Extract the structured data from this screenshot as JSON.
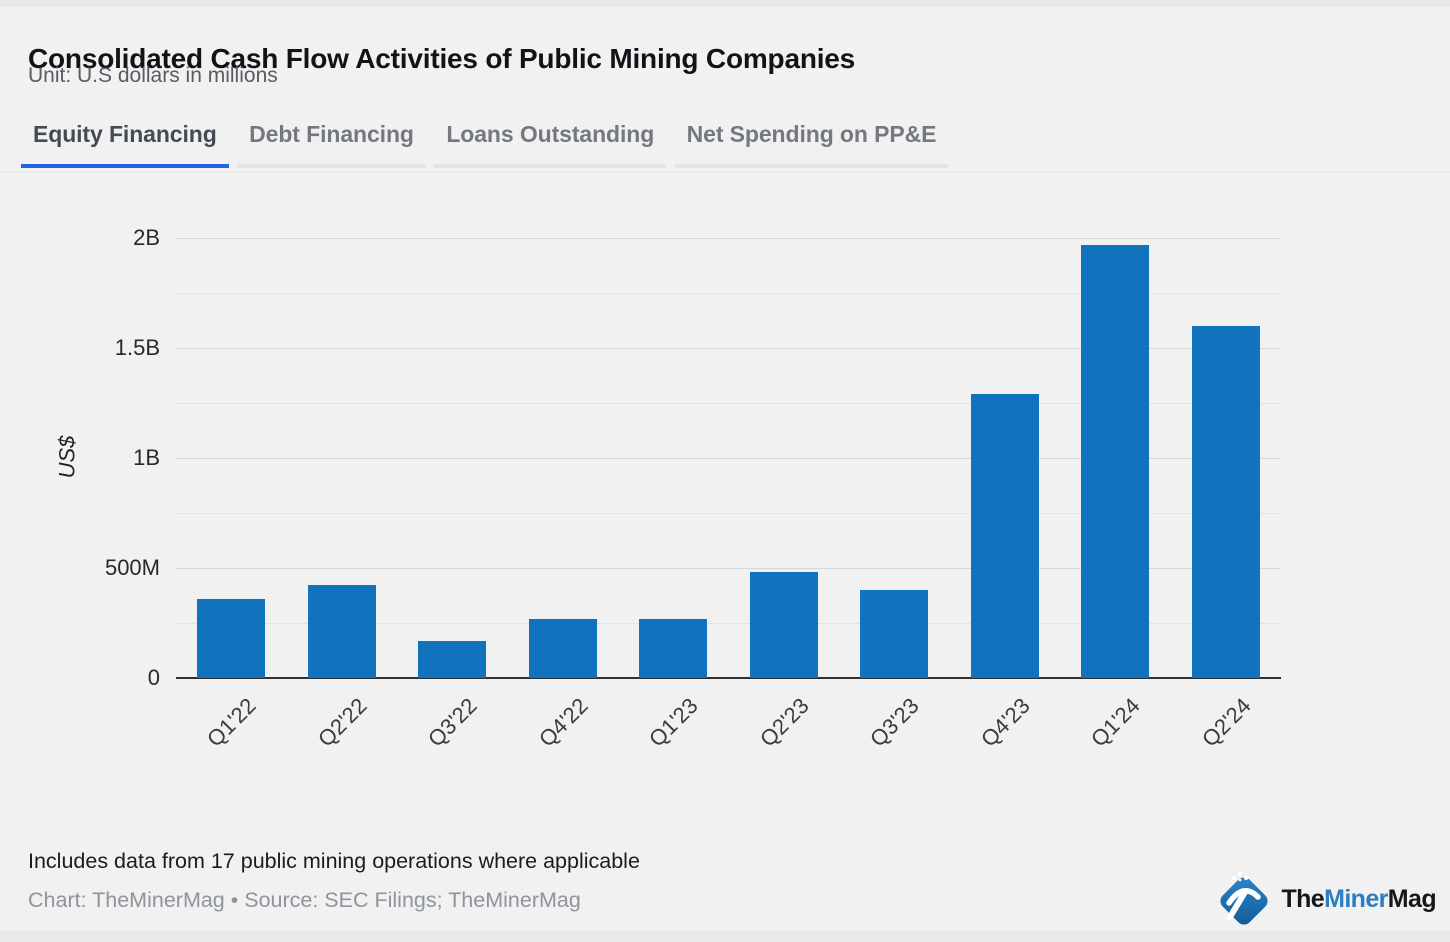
{
  "header": {
    "title": "Consolidated Cash Flow Activities of Public Mining Companies",
    "subtitle": "Unit: U.S dollars in millions"
  },
  "tabs": [
    {
      "label": "Equity Financing",
      "active": true
    },
    {
      "label": "Debt Financing",
      "active": false
    },
    {
      "label": "Loans Outstanding",
      "active": false
    },
    {
      "label": "Net Spending on PP&E",
      "active": false
    }
  ],
  "colors": {
    "accent_tab_underline": "#2563eb",
    "bar": "#1173bd",
    "logo_mark_top": "#2e86c9",
    "logo_mark_bottom": "#135a97",
    "logo_text_dark": "#15171b",
    "logo_text_blue": "#2d7dc4"
  },
  "chart_data": {
    "type": "bar",
    "title": "Consolidated Cash Flow Activities of Public Mining Companies — Equity Financing",
    "unit": "U.S dollars in millions",
    "categories": [
      "Q1'22",
      "Q2'22",
      "Q3'22",
      "Q4'22",
      "Q1'23",
      "Q2'23",
      "Q3'23",
      "Q4'23",
      "Q1'24",
      "Q2'24"
    ],
    "values": [
      358,
      424,
      167,
      270,
      266,
      484,
      400,
      1290,
      1966,
      1602
    ],
    "values_unit": "millions of US$",
    "xlabel": "",
    "ylabel": "US$",
    "ylim": [
      0,
      2000
    ],
    "ytick_values": [
      0,
      500,
      1000,
      1500,
      2000
    ],
    "ytick_labels": [
      "0",
      "500M",
      "1B",
      "1.5B",
      "2B"
    ],
    "minor_step": 250,
    "major_step": 500,
    "grid": true,
    "legend": "none",
    "bar_color": "#1173bd"
  },
  "footer": {
    "note": "Includes data from 17 public mining operations where applicable",
    "credit": "Chart: TheMinerMag • Source: SEC Filings; TheMinerMag"
  },
  "logo": {
    "part1": "The",
    "part2": "Miner",
    "part3": "Mag",
    "pickaxe_icon": "pickaxe-icon"
  }
}
